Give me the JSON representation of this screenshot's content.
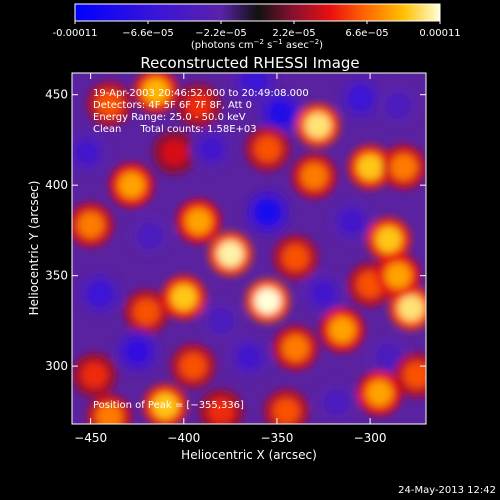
{
  "chart_data": {
    "type": "heatmap",
    "title": "Reconstructed RHESSI Image",
    "xlabel": "Heliocentric X (arcsec)",
    "ylabel": "Heliocentric Y (arcsec)",
    "xlim": [
      -460,
      -270
    ],
    "ylim": [
      268,
      462
    ],
    "x_ticks": [
      -450,
      -400,
      -350,
      -300
    ],
    "y_ticks": [
      300,
      350,
      400,
      450
    ],
    "colorbar": {
      "range": [
        -0.00011,
        0.00011
      ],
      "tick_values": [
        -0.00011,
        -6.6e-05,
        -2.2e-05,
        2.2e-05,
        6.6e-05,
        0.00011
      ],
      "tick_labels": [
        "-0.00011",
        "−6.6e−05",
        "−2.2e−05",
        "2.2e−05",
        "6.6e−05",
        "0.00011"
      ],
      "units_main": "(photons cm",
      "units_exp1": "−2",
      "units_mid": " s",
      "units_exp2": "−1",
      "units_end": " asec",
      "units_exp3": "−2",
      "units_close": ")"
    },
    "annotations": [
      "19-Apr-2003 20:46:52.000 to 20:49:08.000",
      "Detectors: 4F 5F 6F 7F 8F, Att 0",
      "Energy Range: 25.0 - 50.0 keV",
      "Clean      Total counts: 1.58E+03"
    ],
    "peak_label": "Position of Peak = [−355,336]",
    "peak": [
      -355,
      336
    ],
    "blobs": [
      {
        "x": -440,
        "y": 445,
        "v": 6e-05
      },
      {
        "x": -415,
        "y": 452,
        "v": 8.5e-05
      },
      {
        "x": -392,
        "y": 444,
        "v": 5e-05
      },
      {
        "x": -362,
        "y": 458,
        "v": -6e-05
      },
      {
        "x": -348,
        "y": 440,
        "v": -8e-05
      },
      {
        "x": -328,
        "y": 433,
        "v": 0.0001
      },
      {
        "x": -305,
        "y": 448,
        "v": -6e-05
      },
      {
        "x": -285,
        "y": 444,
        "v": -4e-05
      },
      {
        "x": -452,
        "y": 418,
        "v": -5e-05
      },
      {
        "x": -428,
        "y": 400,
        "v": 8e-05
      },
      {
        "x": -405,
        "y": 418,
        "v": 4e-05
      },
      {
        "x": -385,
        "y": 420,
        "v": -5e-05
      },
      {
        "x": -355,
        "y": 420,
        "v": 6e-05
      },
      {
        "x": -330,
        "y": 405,
        "v": 7e-05
      },
      {
        "x": -300,
        "y": 410,
        "v": 9e-05
      },
      {
        "x": -282,
        "y": 410,
        "v": 7e-05
      },
      {
        "x": -450,
        "y": 378,
        "v": 7e-05
      },
      {
        "x": -418,
        "y": 372,
        "v": -4e-05
      },
      {
        "x": -392,
        "y": 380,
        "v": 8e-05
      },
      {
        "x": -375,
        "y": 362,
        "v": 0.000105
      },
      {
        "x": -355,
        "y": 385,
        "v": -9e-05
      },
      {
        "x": -340,
        "y": 360,
        "v": 6e-05
      },
      {
        "x": -310,
        "y": 380,
        "v": -5e-05
      },
      {
        "x": -290,
        "y": 370,
        "v": 9e-05
      },
      {
        "x": -445,
        "y": 340,
        "v": -6e-05
      },
      {
        "x": -420,
        "y": 330,
        "v": 6e-05
      },
      {
        "x": -400,
        "y": 338,
        "v": 9e-05
      },
      {
        "x": -380,
        "y": 325,
        "v": -4e-05
      },
      {
        "x": -355,
        "y": 336,
        "v": 0.00011
      },
      {
        "x": -325,
        "y": 340,
        "v": -5e-05
      },
      {
        "x": -300,
        "y": 345,
        "v": 6e-05
      },
      {
        "x": -278,
        "y": 332,
        "v": 0.0001
      },
      {
        "x": -285,
        "y": 350,
        "v": 8e-05
      },
      {
        "x": -448,
        "y": 295,
        "v": 5e-05
      },
      {
        "x": -425,
        "y": 308,
        "v": -7e-05
      },
      {
        "x": -395,
        "y": 300,
        "v": 6e-05
      },
      {
        "x": -365,
        "y": 305,
        "v": -5e-05
      },
      {
        "x": -340,
        "y": 310,
        "v": 7e-05
      },
      {
        "x": -315,
        "y": 320,
        "v": 8e-05
      },
      {
        "x": -290,
        "y": 305,
        "v": -4e-05
      },
      {
        "x": -440,
        "y": 272,
        "v": 7e-05
      },
      {
        "x": -410,
        "y": 278,
        "v": 9e-05
      },
      {
        "x": -380,
        "y": 275,
        "v": 5e-05
      },
      {
        "x": -345,
        "y": 275,
        "v": 6e-05
      },
      {
        "x": -318,
        "y": 280,
        "v": -4e-05
      },
      {
        "x": -295,
        "y": 285,
        "v": 8e-05
      },
      {
        "x": -275,
        "y": 295,
        "v": 6e-05
      }
    ]
  },
  "footer": {
    "timestamp": "24-May-2013 12:42"
  },
  "colors": {
    "background": "#000000",
    "foreground": "#ffffff"
  }
}
